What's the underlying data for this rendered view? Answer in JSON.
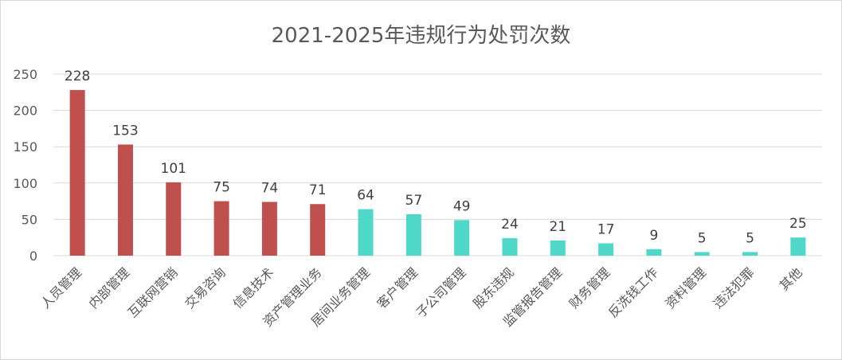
{
  "chart_data": {
    "type": "bar",
    "title": "2021-2025年违规行为处罚次数",
    "xlabel": "",
    "ylabel": "",
    "ylim": [
      0,
      250
    ],
    "yticks": [
      0,
      50,
      100,
      150,
      200,
      250
    ],
    "grid": true,
    "legend": "none",
    "categories": [
      "人员管理",
      "内部管理",
      "互联网营销",
      "交易咨询",
      "信息技术",
      "资产管理业务",
      "居间业务管理",
      "客户管理",
      "子公司管理",
      "股东违规",
      "监管报告管理",
      "财务管理",
      "反洗钱工作",
      "资料管理",
      "违法犯罪",
      "其他"
    ],
    "values": [
      228,
      153,
      101,
      75,
      74,
      71,
      64,
      57,
      49,
      24,
      21,
      17,
      9,
      5,
      5,
      25
    ],
    "bar_colors": [
      "#c0504d",
      "#c0504d",
      "#c0504d",
      "#c0504d",
      "#c0504d",
      "#c0504d",
      "#4fd8c8",
      "#4fd8c8",
      "#4fd8c8",
      "#4fd8c8",
      "#4fd8c8",
      "#4fd8c8",
      "#4fd8c8",
      "#4fd8c8",
      "#4fd8c8",
      "#4fd8c8"
    ]
  },
  "colors": {
    "gridline": "#d9d9d9",
    "text": "#595959"
  }
}
